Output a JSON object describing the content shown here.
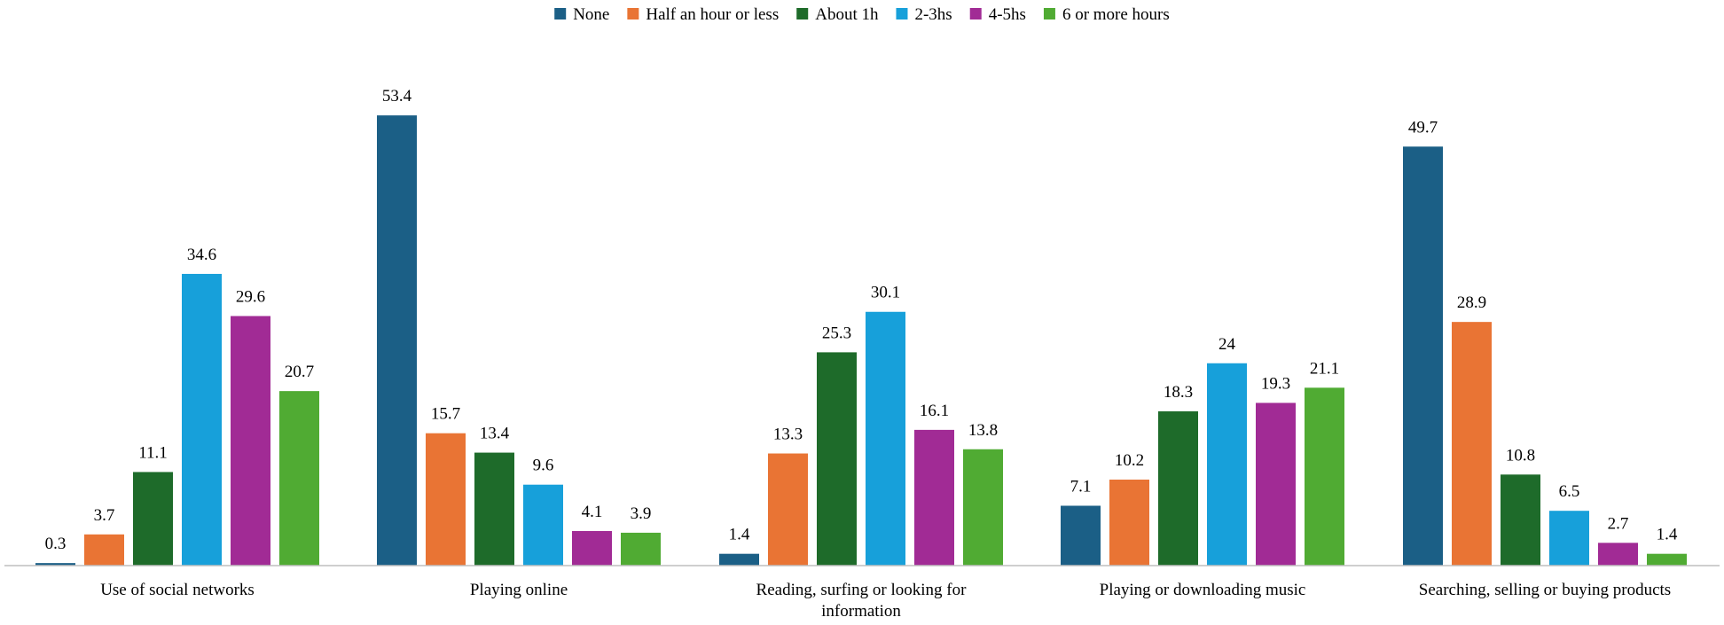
{
  "chart_data": {
    "type": "bar",
    "categories": [
      [
        "Use of social networks"
      ],
      [
        "Playing online"
      ],
      [
        "Reading, surfing or looking for",
        "information"
      ],
      [
        "Playing or downloading music"
      ],
      [
        "Searching, selling or buying products"
      ]
    ],
    "series": [
      {
        "name": "None",
        "color": "#1b5f86",
        "values": [
          0.3,
          53.4,
          1.4,
          7.1,
          49.7
        ],
        "labels": [
          "0.3",
          "53.4",
          "1.4",
          "7.1",
          "49.7"
        ]
      },
      {
        "name": "Half an hour or less",
        "color": "#e97434",
        "values": [
          3.7,
          15.7,
          13.3,
          10.2,
          28.9
        ],
        "labels": [
          "3.7",
          "15.7",
          "13.3",
          "10.2",
          "28.9"
        ]
      },
      {
        "name": "About 1h",
        "color": "#1e6b2a",
        "values": [
          11.1,
          13.4,
          25.3,
          18.3,
          10.8
        ],
        "labels": [
          "11.1",
          "13.4",
          "25.3",
          "18.3",
          "10.8"
        ]
      },
      {
        "name": "2-3hs",
        "color": "#17a0da",
        "values": [
          34.6,
          9.6,
          30.1,
          24,
          6.5
        ],
        "labels": [
          "34.6",
          "9.6",
          "30.1",
          "24",
          "6.5"
        ]
      },
      {
        "name": "4-5hs",
        "color": "#a12b95",
        "values": [
          29.6,
          4.1,
          16.1,
          19.3,
          2.7
        ],
        "labels": [
          "29.6",
          "4.1",
          "16.1",
          "19.3",
          "2.7"
        ]
      },
      {
        "name": "6 or more hours",
        "color": "#50ab33",
        "values": [
          20.7,
          3.9,
          13.8,
          21.1,
          1.4
        ],
        "labels": [
          "20.7",
          "3.9",
          "13.8",
          "21.1",
          "1.4"
        ]
      }
    ],
    "ylim": [
      0,
      60
    ],
    "grid": false,
    "legend": "top-center"
  }
}
